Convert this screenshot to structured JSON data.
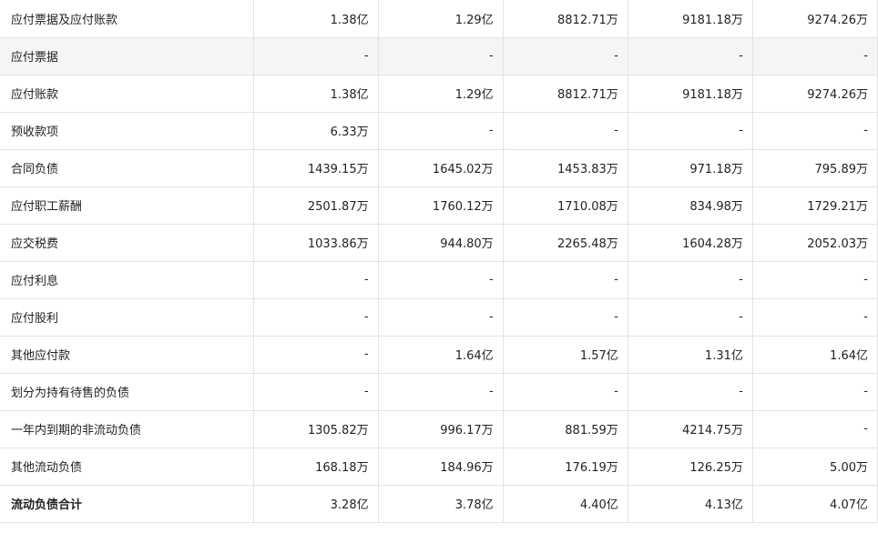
{
  "table": {
    "rows": [
      [
        "应付票据及应付账款",
        "1.38亿",
        "1.29亿",
        "8812.71万",
        "9181.18万",
        "9274.26万"
      ],
      [
        "应付票据",
        "-",
        "-",
        "-",
        "-",
        "-"
      ],
      [
        "应付账款",
        "1.38亿",
        "1.29亿",
        "8812.71万",
        "9181.18万",
        "9274.26万"
      ],
      [
        "预收款项",
        "6.33万",
        "-",
        "-",
        "-",
        "-"
      ],
      [
        "合同负债",
        "1439.15万",
        "1645.02万",
        "1453.83万",
        "971.18万",
        "795.89万"
      ],
      [
        "应付职工薪酬",
        "2501.87万",
        "1760.12万",
        "1710.08万",
        "834.98万",
        "1729.21万"
      ],
      [
        "应交税费",
        "1033.86万",
        "944.80万",
        "2265.48万",
        "1604.28万",
        "2052.03万"
      ],
      [
        "应付利息",
        "-",
        "-",
        "-",
        "-",
        "-"
      ],
      [
        "应付股利",
        "-",
        "-",
        "-",
        "-",
        "-"
      ],
      [
        "其他应付款",
        "-",
        "1.64亿",
        "1.57亿",
        "1.31亿",
        "1.64亿"
      ],
      [
        "划分为持有待售的负债",
        "-",
        "-",
        "-",
        "-",
        "-"
      ],
      [
        "一年内到期的非流动负债",
        "1305.82万",
        "996.17万",
        "881.59万",
        "4214.75万",
        "-"
      ],
      [
        "其他流动负债",
        "168.18万",
        "184.96万",
        "176.19万",
        "126.25万",
        "5.00万"
      ],
      [
        "流动负债合计",
        "3.28亿",
        "3.78亿",
        "4.40亿",
        "4.13亿",
        "4.07亿"
      ]
    ]
  }
}
